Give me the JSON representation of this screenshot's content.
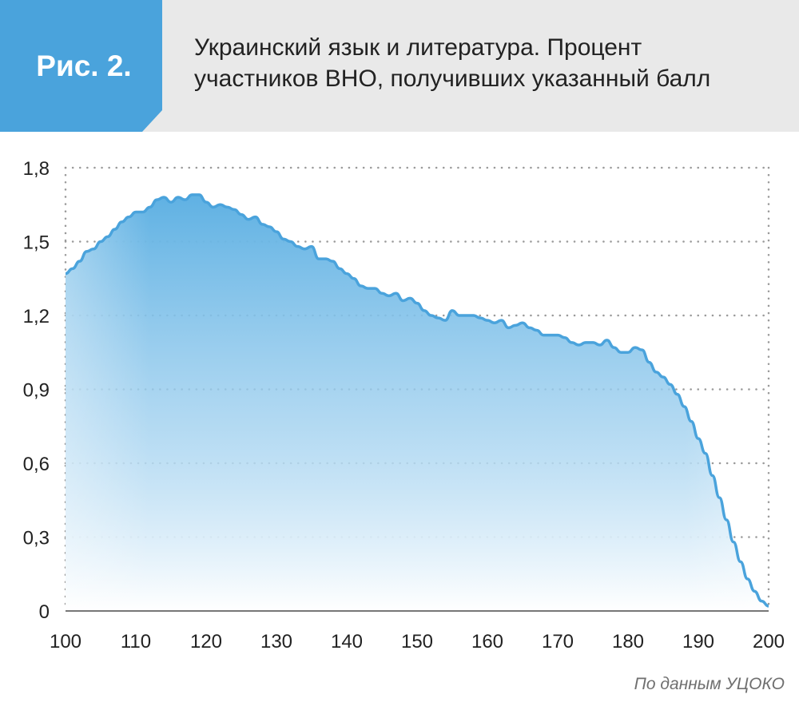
{
  "header": {
    "badge": "Рис. 2.",
    "title_lines": [
      "Украинский язык и литература. Процент",
      "участников ВНО, получивших указанный балл"
    ]
  },
  "source": "По данным УЦОКО",
  "colors": {
    "badge": "#4aa3dc",
    "header_bg": "#e9e9e9",
    "line": "#4aa3dc",
    "fill_top": "#5fb1e3",
    "grid": "#9a9a9a"
  },
  "chart_data": {
    "type": "area",
    "title": "Украинский язык и литература. Процент участников ВНО, получивших указанный балл",
    "xlabel": "",
    "ylabel": "",
    "xlim": [
      100,
      200
    ],
    "ylim": [
      0,
      1.8
    ],
    "x_ticks": [
      "100",
      "110",
      "120",
      "130",
      "140",
      "150",
      "160",
      "170",
      "180",
      "190",
      "200"
    ],
    "y_ticks": [
      "0",
      "0,3",
      "0,6",
      "0,9",
      "1,2",
      "1,5",
      "1,8"
    ],
    "grid": "dotted horizontal",
    "series": [
      {
        "x": [
          100,
          101,
          102,
          103,
          104,
          105,
          106,
          107,
          108,
          109,
          110,
          111,
          112,
          113,
          114,
          115,
          116,
          117,
          118,
          119,
          120,
          121,
          122,
          123,
          124,
          125,
          126,
          127,
          128,
          129,
          130,
          131,
          132,
          133,
          134,
          135,
          136,
          137,
          138,
          139,
          140,
          141,
          142,
          143,
          144,
          145,
          146,
          147,
          148,
          149,
          150,
          151,
          152,
          153,
          154,
          155,
          156,
          157,
          158,
          159,
          160,
          161,
          162,
          163,
          164,
          165,
          166,
          167,
          168,
          169,
          170,
          171,
          172,
          173,
          174,
          175,
          176,
          177,
          178,
          179,
          180,
          181,
          182,
          183,
          184,
          185,
          186,
          187,
          188,
          189,
          190,
          191,
          192,
          193,
          194,
          195,
          196,
          197,
          198,
          199,
          200
        ],
        "values": [
          1.37,
          1.39,
          1.42,
          1.46,
          1.47,
          1.5,
          1.52,
          1.55,
          1.58,
          1.6,
          1.62,
          1.62,
          1.64,
          1.67,
          1.68,
          1.66,
          1.68,
          1.67,
          1.69,
          1.69,
          1.66,
          1.64,
          1.65,
          1.64,
          1.63,
          1.61,
          1.59,
          1.6,
          1.57,
          1.56,
          1.54,
          1.51,
          1.5,
          1.48,
          1.47,
          1.48,
          1.43,
          1.43,
          1.42,
          1.39,
          1.37,
          1.35,
          1.32,
          1.31,
          1.31,
          1.29,
          1.28,
          1.29,
          1.26,
          1.27,
          1.25,
          1.22,
          1.2,
          1.19,
          1.18,
          1.22,
          1.2,
          1.2,
          1.2,
          1.19,
          1.18,
          1.17,
          1.18,
          1.15,
          1.16,
          1.17,
          1.15,
          1.14,
          1.12,
          1.12,
          1.12,
          1.11,
          1.09,
          1.08,
          1.09,
          1.09,
          1.08,
          1.1,
          1.07,
          1.05,
          1.05,
          1.07,
          1.06,
          1.01,
          0.97,
          0.95,
          0.92,
          0.88,
          0.83,
          0.77,
          0.7,
          0.64,
          0.55,
          0.46,
          0.37,
          0.28,
          0.2,
          0.13,
          0.08,
          0.04,
          0.02
        ]
      }
    ]
  }
}
